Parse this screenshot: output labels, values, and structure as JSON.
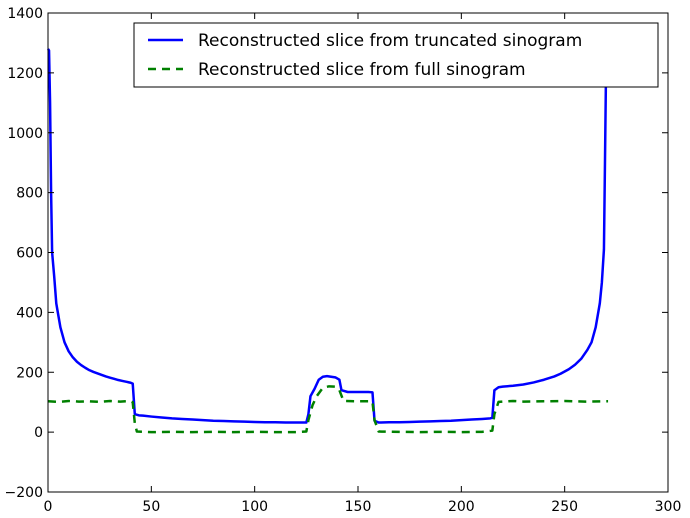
{
  "chart_data": {
    "type": "line",
    "title": "",
    "xlabel": "",
    "ylabel": "",
    "xlim": [
      0,
      300
    ],
    "ylim": [
      -200,
      1400
    ],
    "xticks": [
      0,
      50,
      100,
      150,
      200,
      250,
      300
    ],
    "yticks": [
      -200,
      0,
      200,
      400,
      600,
      800,
      1000,
      1200,
      1400
    ],
    "x_tick_labels": [
      "0",
      "50",
      "100",
      "150",
      "200",
      "250",
      "300"
    ],
    "y_tick_labels": [
      "−200",
      "0",
      "200",
      "400",
      "600",
      "800",
      "1000",
      "1200",
      "1400"
    ],
    "grid": false,
    "legend_position": "top-right",
    "series": [
      {
        "name": "Reconstructed slice from truncated sinogram",
        "color": "#0000ff",
        "style": "solid",
        "points": [
          [
            0,
            1280
          ],
          [
            0.5,
            1275
          ],
          [
            1,
            1100
          ],
          [
            1.5,
            800
          ],
          [
            2,
            600
          ],
          [
            3,
            520
          ],
          [
            4,
            430
          ],
          [
            5,
            390
          ],
          [
            6,
            350
          ],
          [
            8,
            300
          ],
          [
            10,
            270
          ],
          [
            12,
            250
          ],
          [
            14,
            235
          ],
          [
            16,
            224
          ],
          [
            18,
            215
          ],
          [
            20,
            207
          ],
          [
            22,
            201
          ],
          [
            24,
            196
          ],
          [
            26,
            191
          ],
          [
            28,
            186
          ],
          [
            30,
            182
          ],
          [
            32,
            178
          ],
          [
            34,
            174
          ],
          [
            36,
            171
          ],
          [
            38,
            168
          ],
          [
            40,
            165
          ],
          [
            41,
            162
          ],
          [
            42,
            60
          ],
          [
            44,
            56
          ],
          [
            46,
            55
          ],
          [
            50,
            52
          ],
          [
            55,
            49
          ],
          [
            60,
            46
          ],
          [
            65,
            44
          ],
          [
            70,
            42
          ],
          [
            75,
            40
          ],
          [
            80,
            38
          ],
          [
            85,
            37
          ],
          [
            90,
            36
          ],
          [
            95,
            35
          ],
          [
            100,
            34
          ],
          [
            105,
            33
          ],
          [
            110,
            33
          ],
          [
            115,
            32
          ],
          [
            120,
            32
          ],
          [
            125,
            32
          ],
          [
            126,
            60
          ],
          [
            127,
            120
          ],
          [
            129,
            145
          ],
          [
            131,
            175
          ],
          [
            133,
            185
          ],
          [
            135,
            187
          ],
          [
            137,
            185
          ],
          [
            139,
            183
          ],
          [
            141,
            175
          ],
          [
            142,
            140
          ],
          [
            145,
            134
          ],
          [
            150,
            134
          ],
          [
            155,
            134
          ],
          [
            157,
            133
          ],
          [
            158,
            38
          ],
          [
            160,
            32
          ],
          [
            165,
            33
          ],
          [
            170,
            33
          ],
          [
            175,
            34
          ],
          [
            180,
            35
          ],
          [
            185,
            36
          ],
          [
            190,
            37
          ],
          [
            195,
            38
          ],
          [
            200,
            40
          ],
          [
            205,
            42
          ],
          [
            210,
            44
          ],
          [
            214,
            46
          ],
          [
            215,
            48
          ],
          [
            216,
            140
          ],
          [
            218,
            150
          ],
          [
            220,
            152
          ],
          [
            225,
            155
          ],
          [
            230,
            159
          ],
          [
            235,
            166
          ],
          [
            240,
            175
          ],
          [
            245,
            186
          ],
          [
            248,
            195
          ],
          [
            252,
            210
          ],
          [
            255,
            225
          ],
          [
            258,
            245
          ],
          [
            261,
            275
          ],
          [
            263,
            300
          ],
          [
            265,
            350
          ],
          [
            267,
            430
          ],
          [
            268,
            500
          ],
          [
            269,
            610
          ],
          [
            269.5,
            900
          ],
          [
            270,
            1200
          ]
        ]
      },
      {
        "name": "Reconstructed slice from full sinogram",
        "color": "#008000",
        "style": "dashed",
        "points": [
          [
            0,
            103
          ],
          [
            5,
            101
          ],
          [
            10,
            104
          ],
          [
            15,
            102
          ],
          [
            20,
            103
          ],
          [
            25,
            101
          ],
          [
            30,
            104
          ],
          [
            35,
            102
          ],
          [
            40,
            104
          ],
          [
            41,
            100
          ],
          [
            42,
            30
          ],
          [
            43,
            2
          ],
          [
            50,
            0
          ],
          [
            60,
            1
          ],
          [
            70,
            0
          ],
          [
            80,
            1
          ],
          [
            90,
            0
          ],
          [
            100,
            1
          ],
          [
            110,
            0
          ],
          [
            120,
            0
          ],
          [
            125,
            2
          ],
          [
            126,
            40
          ],
          [
            128,
            90
          ],
          [
            130,
            120
          ],
          [
            133,
            148
          ],
          [
            136,
            153
          ],
          [
            139,
            152
          ],
          [
            141,
            140
          ],
          [
            143,
            104
          ],
          [
            150,
            103
          ],
          [
            155,
            103
          ],
          [
            157,
            101
          ],
          [
            158,
            40
          ],
          [
            160,
            2
          ],
          [
            170,
            1
          ],
          [
            180,
            0
          ],
          [
            190,
            1
          ],
          [
            200,
            0
          ],
          [
            210,
            1
          ],
          [
            215,
            5
          ],
          [
            216,
            60
          ],
          [
            218,
            101
          ],
          [
            225,
            104
          ],
          [
            230,
            102
          ],
          [
            240,
            103
          ],
          [
            250,
            104
          ],
          [
            260,
            102
          ],
          [
            270,
            103
          ],
          [
            271,
            103
          ]
        ]
      }
    ]
  }
}
